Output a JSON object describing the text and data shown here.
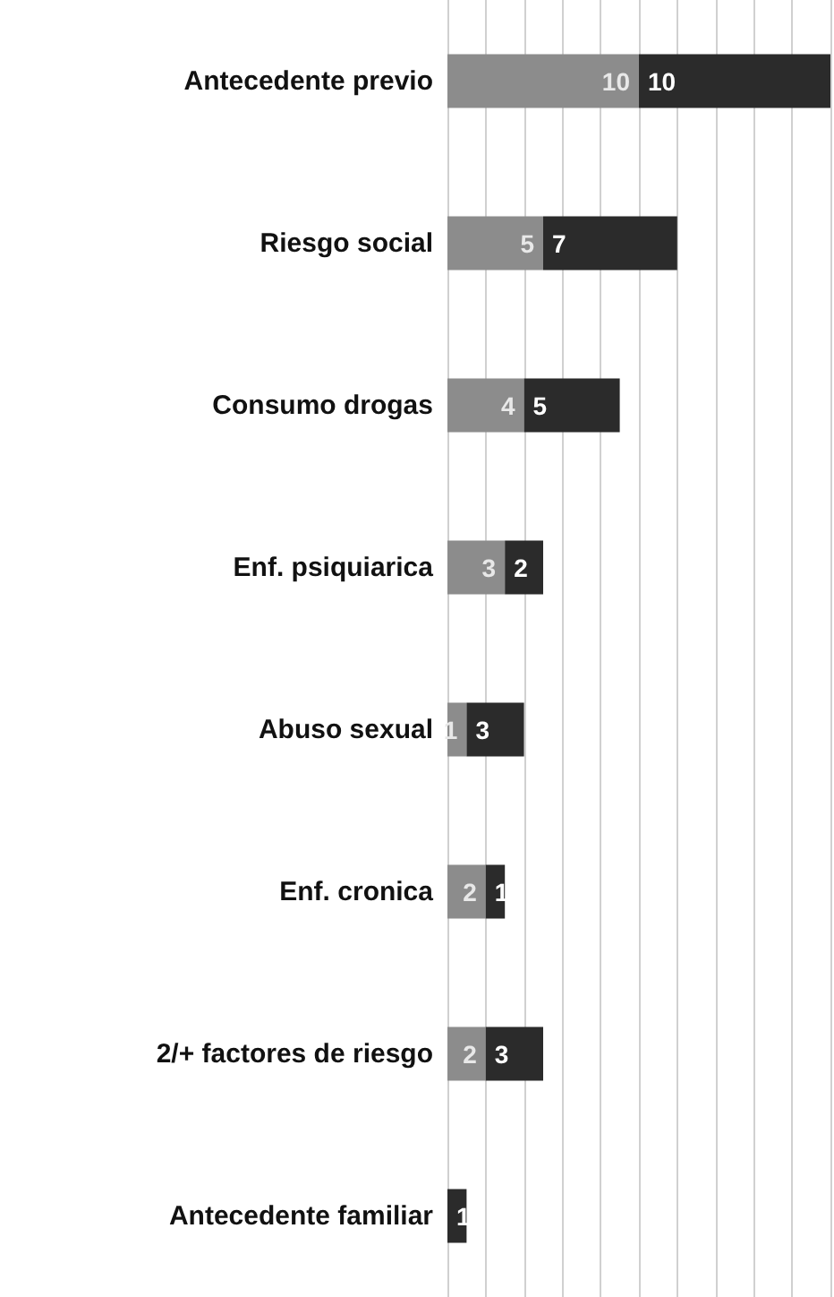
{
  "chart_data": {
    "type": "bar",
    "orientation": "horizontal",
    "stacked": true,
    "grid": "x",
    "tick_labels": "y",
    "data_labels": true,
    "categories": [
      "Antecedente previo",
      "Riesgo social",
      "Consumo drogas",
      "Enf. psiquiarica",
      "Abuso sexual",
      "Enf. cronica",
      "2/+ factores de riesgo",
      "Antecedente familiar"
    ],
    "series": [
      {
        "color": "#8c8c8c",
        "values": [
          10,
          5,
          4,
          3,
          1,
          2,
          2,
          null
        ]
      },
      {
        "color": "#2b2b2b",
        "values": [
          10,
          7,
          5,
          2,
          3,
          1,
          3,
          1
        ]
      }
    ]
  }
}
